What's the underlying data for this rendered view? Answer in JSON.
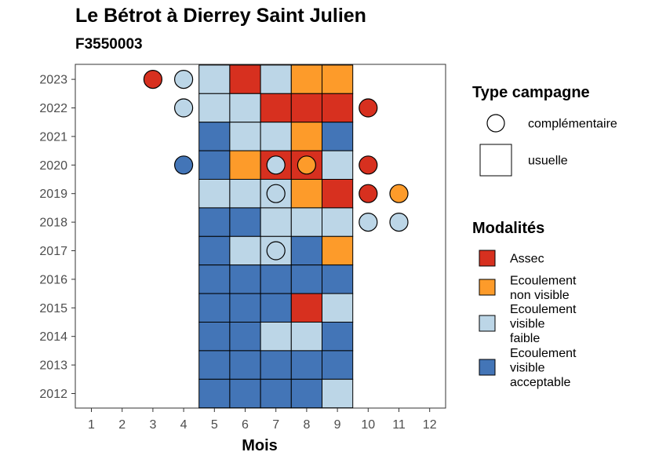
{
  "title": "Le Bétrot à Dierrey Saint Julien",
  "subtitle": "F3550003",
  "chart_data": {
    "type": "heatmap",
    "xlabel": "Mois",
    "ylabel": "",
    "x_ticks": [
      "1",
      "2",
      "3",
      "4",
      "5",
      "6",
      "7",
      "8",
      "9",
      "10",
      "11",
      "12"
    ],
    "y_ticks": [
      "2012",
      "2013",
      "2014",
      "2015",
      "2016",
      "2017",
      "2018",
      "2019",
      "2020",
      "2021",
      "2022",
      "2023"
    ],
    "grid": false,
    "legends": {
      "type_campagne": {
        "title": "Type campagne",
        "entries": [
          {
            "key": "complementaire",
            "label": "complémentaire",
            "shape": "circle"
          },
          {
            "key": "usuelle",
            "label": "usuelle",
            "shape": "square"
          }
        ]
      },
      "modalites": {
        "title": "Modalités",
        "entries": [
          {
            "key": "assec",
            "lines": [
              "Assec"
            ],
            "color": "#d7301f"
          },
          {
            "key": "non_visible",
            "lines": [
              "Ecoulement",
              "non visible"
            ],
            "color": "#fd9b2a"
          },
          {
            "key": "faible",
            "lines": [
              "Ecoulement",
              "visible",
              "faible"
            ],
            "color": "#bcd6e7"
          },
          {
            "key": "acceptable",
            "lines": [
              "Ecoulement",
              "visible",
              "acceptable"
            ],
            "color": "#4375b7"
          }
        ]
      }
    },
    "usuelle": [
      {
        "year": 2023,
        "cells": {
          "5": "faible",
          "6": "assec",
          "7": "faible",
          "8": "non_visible",
          "9": "non_visible"
        }
      },
      {
        "year": 2022,
        "cells": {
          "5": "faible",
          "6": "faible",
          "7": "assec",
          "8": "assec",
          "9": "assec"
        }
      },
      {
        "year": 2021,
        "cells": {
          "5": "acceptable",
          "6": "faible",
          "7": "faible",
          "8": "non_visible",
          "9": "acceptable"
        }
      },
      {
        "year": 2020,
        "cells": {
          "5": "acceptable",
          "6": "non_visible",
          "7": "assec",
          "8": "assec",
          "9": "faible"
        }
      },
      {
        "year": 2019,
        "cells": {
          "5": "faible",
          "6": "faible",
          "7": "faible",
          "8": "non_visible",
          "9": "assec"
        }
      },
      {
        "year": 2018,
        "cells": {
          "5": "acceptable",
          "6": "acceptable",
          "7": "faible",
          "8": "faible",
          "9": "faible"
        }
      },
      {
        "year": 2017,
        "cells": {
          "5": "acceptable",
          "6": "faible",
          "7": "faible",
          "8": "acceptable",
          "9": "non_visible"
        }
      },
      {
        "year": 2016,
        "cells": {
          "5": "acceptable",
          "6": "acceptable",
          "7": "acceptable",
          "8": "acceptable",
          "9": "acceptable"
        }
      },
      {
        "year": 2015,
        "cells": {
          "5": "acceptable",
          "6": "acceptable",
          "7": "acceptable",
          "8": "assec",
          "9": "faible"
        }
      },
      {
        "year": 2014,
        "cells": {
          "5": "acceptable",
          "6": "acceptable",
          "7": "faible",
          "8": "faible",
          "9": "acceptable"
        }
      },
      {
        "year": 2013,
        "cells": {
          "5": "acceptable",
          "6": "acceptable",
          "7": "acceptable",
          "8": "acceptable",
          "9": "acceptable"
        }
      },
      {
        "year": 2012,
        "cells": {
          "5": "acceptable",
          "6": "acceptable",
          "7": "acceptable",
          "8": "acceptable",
          "9": "faible"
        }
      }
    ],
    "complementaire": [
      {
        "year": 2023,
        "month": 3,
        "value": "assec"
      },
      {
        "year": 2023,
        "month": 4,
        "value": "faible"
      },
      {
        "year": 2022,
        "month": 4,
        "value": "faible"
      },
      {
        "year": 2022,
        "month": 10,
        "value": "assec"
      },
      {
        "year": 2020,
        "month": 4,
        "value": "acceptable"
      },
      {
        "year": 2020,
        "month": 7,
        "value": "faible"
      },
      {
        "year": 2020,
        "month": 8,
        "value": "non_visible"
      },
      {
        "year": 2020,
        "month": 10,
        "value": "assec"
      },
      {
        "year": 2019,
        "month": 7,
        "value": "faible"
      },
      {
        "year": 2019,
        "month": 10,
        "value": "assec"
      },
      {
        "year": 2019,
        "month": 11,
        "value": "non_visible"
      },
      {
        "year": 2018,
        "month": 10,
        "value": "faible"
      },
      {
        "year": 2018,
        "month": 11,
        "value": "faible"
      },
      {
        "year": 2017,
        "month": 7,
        "value": "faible"
      }
    ]
  }
}
